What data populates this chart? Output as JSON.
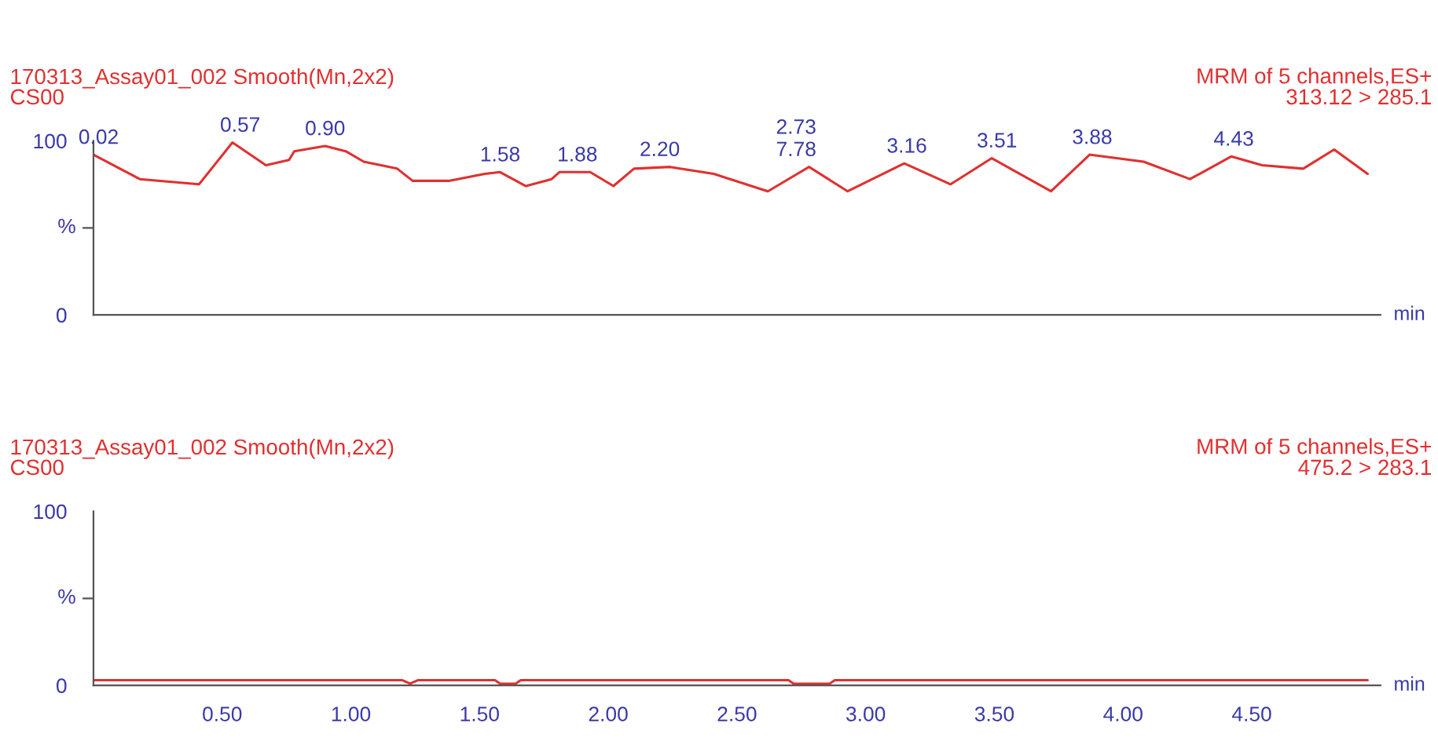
{
  "chart_data": [
    {
      "type": "line",
      "title": "170313_Assay01_002 Smooth(Mn,2x2)",
      "subtitle": "CS00",
      "xlabel": "min",
      "annotations": [
        "MRM of 5 channels,ES+",
        "313.12 > 285.1",
        {
          "text": "0.02",
          "x": 0.02,
          "y": 92
        },
        {
          "text": "0.57",
          "x": 0.57,
          "y": 99
        },
        {
          "text": "0.90",
          "x": 0.9,
          "y": 97
        },
        {
          "text": "1.58",
          "x": 1.58,
          "y": 82
        },
        {
          "text": "1.88",
          "x": 1.88,
          "y": 82
        },
        {
          "text": "2.20",
          "x": 2.2,
          "y": 85
        },
        {
          "text": "2.73\n7.78",
          "x": 2.73,
          "y": 85
        },
        {
          "text": "3.16",
          "x": 3.16,
          "y": 87
        },
        {
          "text": "3.51",
          "x": 3.51,
          "y": 90
        },
        {
          "text": "3.88",
          "x": 3.88,
          "y": 92
        },
        {
          "text": "4.43",
          "x": 4.43,
          "y": 91
        }
      ],
      "series": [
        {
          "color": "#e03030",
          "x": [
            0,
            0.18,
            0.41,
            0.54,
            0.67,
            0.76,
            0.78,
            0.9,
            0.98,
            1.05,
            1.18,
            1.24,
            1.38,
            1.52,
            1.58,
            1.68,
            1.78,
            1.81,
            1.93,
            2.02,
            2.1,
            2.24,
            2.41,
            2.62,
            2.78,
            2.93,
            3.15,
            3.33,
            3.49,
            3.72,
            3.87,
            4.08,
            4.26,
            4.42,
            4.54,
            4.7,
            4.82,
            4.95
          ],
          "values": [
            92,
            78,
            75,
            99,
            86,
            89,
            94,
            97,
            94,
            88,
            84,
            77,
            77,
            81,
            82,
            74,
            78,
            82,
            82,
            74,
            84,
            85,
            81,
            71,
            85,
            71,
            87,
            75,
            90,
            71,
            92,
            88,
            78,
            91,
            86,
            84,
            95,
            81
          ]
        }
      ],
      "xlim": [
        0,
        5
      ],
      "ylim": [
        0,
        100
      ],
      "ylabel": "%",
      "yticks": [
        0,
        100
      ],
      "xticks": [
        {
          "value": 0.5,
          "label": null
        },
        {
          "value": 1,
          "label": null
        },
        {
          "value": 1.5,
          "label": null
        },
        {
          "value": 2,
          "label": null
        },
        {
          "value": 2.5,
          "label": null
        },
        {
          "value": 3,
          "label": null
        },
        {
          "value": 3.5,
          "label": null
        },
        {
          "value": 4,
          "label": null
        },
        {
          "value": 4.5,
          "label": null
        }
      ],
      "tick_labels": "y",
      "grid": false,
      "legend": false
    },
    {
      "type": "line",
      "title": "170313_Assay01_002 Smooth(Mn,2x2)",
      "subtitle": "CS00",
      "xlabel": "min",
      "annotations": [
        "MRM of 5 channels,ES+",
        "475.2 > 283.1"
      ],
      "series": [
        {
          "color": "#e03030",
          "x": [
            0,
            1.2,
            1.23,
            1.26,
            1.56,
            1.58,
            1.64,
            1.66,
            2.7,
            2.72,
            2.86,
            2.88,
            4.95
          ],
          "values": [
            3,
            3,
            1,
            3,
            3,
            1,
            1,
            3,
            3,
            1,
            1,
            3,
            3
          ]
        }
      ],
      "xlim": [
        0,
        5
      ],
      "ylim": [
        0,
        100
      ],
      "ylabel": "%",
      "yticks": [
        0,
        100
      ],
      "xticks": [
        {
          "value": 0.5,
          "label": "0.50"
        },
        {
          "value": 1,
          "label": "1.00"
        },
        {
          "value": 1.5,
          "label": "1.50"
        },
        {
          "value": 2,
          "label": "2.00"
        },
        {
          "value": 2.5,
          "label": "2.50"
        },
        {
          "value": 3,
          "label": "3.00"
        },
        {
          "value": 3.5,
          "label": "3.50"
        },
        {
          "value": 4,
          "label": "4.00"
        },
        {
          "value": 4.5,
          "label": "4.50"
        }
      ],
      "grid": false,
      "legend": false
    }
  ]
}
